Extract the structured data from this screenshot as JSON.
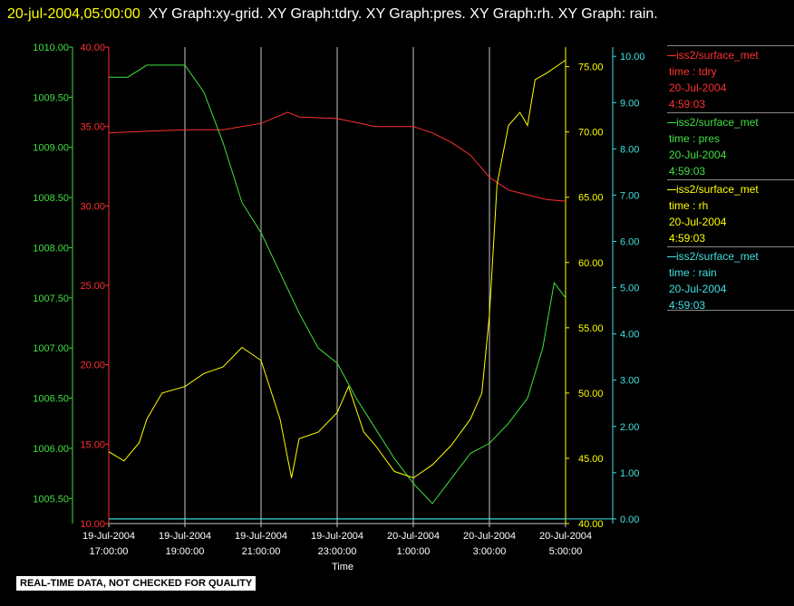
{
  "header": {
    "timestamp": "20-jul-2004,05:00:00",
    "graphs": "XY Graph:xy-grid.  XY Graph:tdry.  XY Graph:pres.  XY Graph:rh.  XY Graph: rain."
  },
  "banner": "REAL-TIME DATA, NOT CHECKED FOR QUALITY",
  "colors": {
    "tdry": "#ff3030",
    "pres": "#40e040",
    "rh": "#ffff00",
    "rain": "#40e0e0",
    "grid": "#c8c8c8"
  },
  "legend": [
    {
      "name": "iss2/surface_met",
      "var": "time : tdry",
      "date": "20-Jul-2004",
      "time": "4:59:03",
      "color": "#ff3030"
    },
    {
      "name": "iss2/surface_met",
      "var": "time : pres",
      "date": "20-Jul-2004",
      "time": "4:59:03",
      "color": "#40e040"
    },
    {
      "name": "iss2/surface_met",
      "var": "time : rh",
      "date": "20-Jul-2004",
      "time": "4:59:03",
      "color": "#ffff00"
    },
    {
      "name": "iss2/surface_met",
      "var": "time : rain",
      "date": "20-Jul-2004",
      "time": "4:59:03",
      "color": "#40e0e0"
    }
  ],
  "chart_data": {
    "type": "line",
    "xlabel": "Time",
    "x_ticks": [
      {
        "date": "19-Jul-2004",
        "time": "17:00:00",
        "h": 0
      },
      {
        "date": "19-Jul-2004",
        "time": "19:00:00",
        "h": 2
      },
      {
        "date": "19-Jul-2004",
        "time": "21:00:00",
        "h": 4
      },
      {
        "date": "19-Jul-2004",
        "time": "23:00:00",
        "h": 6
      },
      {
        "date": "20-Jul-2004",
        "time": "1:00:00",
        "h": 8
      },
      {
        "date": "20-Jul-2004",
        "time": "3:00:00",
        "h": 10
      },
      {
        "date": "20-Jul-2004",
        "time": "5:00:00",
        "h": 12
      }
    ],
    "xlim_hours": [
      0,
      12
    ],
    "axes": {
      "tdry": {
        "ylim": [
          10,
          40
        ],
        "ticks": [
          "10.00",
          "15.00",
          "20.00",
          "25.00",
          "30.00",
          "35.00",
          "40.00"
        ]
      },
      "pres": {
        "ylim": [
          1005.25,
          1010
        ],
        "ticks": [
          "1005.50",
          "1006.00",
          "1006.50",
          "1007.00",
          "1007.50",
          "1008.00",
          "1008.50",
          "1009.00",
          "1009.50",
          "1010.00"
        ]
      },
      "rh": {
        "ylim": [
          40,
          76.5
        ],
        "ticks": [
          "40.00",
          "45.00",
          "50.00",
          "55.00",
          "60.00",
          "65.00",
          "70.00",
          "75.00"
        ]
      },
      "rain": {
        "ylim": [
          -0.1,
          10.2
        ],
        "ticks": [
          "0.00",
          "1.00",
          "2.00",
          "3.00",
          "4.00",
          "5.00",
          "6.00",
          "7.00",
          "8.00",
          "9.00",
          "10.00"
        ]
      }
    },
    "series": [
      {
        "key": "tdry",
        "name": "iss2/surface_met  time : tdry",
        "points": [
          [
            0,
            34.6
          ],
          [
            1,
            34.7
          ],
          [
            2,
            34.8
          ],
          [
            3,
            34.8
          ],
          [
            4,
            35.2
          ],
          [
            4.7,
            35.9
          ],
          [
            5,
            35.6
          ],
          [
            6,
            35.5
          ],
          [
            7,
            35.0
          ],
          [
            8,
            35.0
          ],
          [
            8.5,
            34.6
          ],
          [
            9,
            34.0
          ],
          [
            9.5,
            33.2
          ],
          [
            10,
            31.8
          ],
          [
            10.5,
            31.0
          ],
          [
            11,
            30.7
          ],
          [
            11.5,
            30.4
          ],
          [
            12,
            30.3
          ]
        ]
      },
      {
        "key": "pres",
        "name": "iss2/surface_met  time : pres",
        "points": [
          [
            0,
            1009.7
          ],
          [
            0.5,
            1009.7
          ],
          [
            1,
            1009.82
          ],
          [
            2,
            1009.82
          ],
          [
            2.5,
            1009.55
          ],
          [
            3,
            1009.05
          ],
          [
            3.5,
            1008.45
          ],
          [
            4,
            1008.15
          ],
          [
            4.5,
            1007.75
          ],
          [
            5,
            1007.35
          ],
          [
            5.5,
            1007.0
          ],
          [
            6,
            1006.85
          ],
          [
            6.5,
            1006.5
          ],
          [
            7,
            1006.2
          ],
          [
            7.5,
            1005.9
          ],
          [
            8,
            1005.65
          ],
          [
            8.5,
            1005.45
          ],
          [
            9,
            1005.7
          ],
          [
            9.5,
            1005.95
          ],
          [
            10,
            1006.05
          ],
          [
            10.5,
            1006.25
          ],
          [
            11,
            1006.5
          ],
          [
            11.4,
            1007.0
          ],
          [
            11.7,
            1007.65
          ],
          [
            12,
            1007.5
          ]
        ]
      },
      {
        "key": "rh",
        "name": "iss2/surface_met  time : rh",
        "points": [
          [
            0,
            45.5
          ],
          [
            0.4,
            44.8
          ],
          [
            0.8,
            46.2
          ],
          [
            1,
            48.0
          ],
          [
            1.4,
            50.0
          ],
          [
            2,
            50.5
          ],
          [
            2.5,
            51.5
          ],
          [
            3,
            52.0
          ],
          [
            3.5,
            53.5
          ],
          [
            4,
            52.5
          ],
          [
            4.5,
            48.0
          ],
          [
            4.8,
            43.5
          ],
          [
            5,
            46.5
          ],
          [
            5.5,
            47.0
          ],
          [
            6,
            48.5
          ],
          [
            6.3,
            50.5
          ],
          [
            6.7,
            47.0
          ],
          [
            7,
            46.0
          ],
          [
            7.5,
            44.0
          ],
          [
            8,
            43.5
          ],
          [
            8.5,
            44.5
          ],
          [
            9,
            46.0
          ],
          [
            9.5,
            48.0
          ],
          [
            9.8,
            50.0
          ],
          [
            10,
            56.0
          ],
          [
            10.2,
            66.0
          ],
          [
            10.5,
            70.5
          ],
          [
            10.8,
            71.5
          ],
          [
            11,
            70.5
          ],
          [
            11.2,
            74.0
          ],
          [
            11.5,
            74.5
          ],
          [
            12,
            75.5
          ]
        ]
      },
      {
        "key": "rain",
        "name": "iss2/surface_met  time : rain",
        "points": [
          [
            0,
            0.0
          ],
          [
            12,
            0.0
          ]
        ]
      }
    ]
  }
}
